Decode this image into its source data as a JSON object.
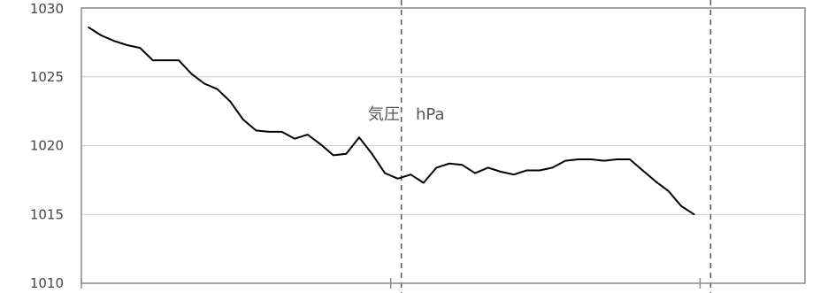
{
  "chart_data": {
    "type": "line",
    "title": "",
    "annotation": "気圧　hPa",
    "xlabel": "",
    "ylabel": "",
    "ylim": [
      1010,
      1030
    ],
    "yticks": [
      1010,
      1015,
      1020,
      1025,
      1030
    ],
    "grid": true,
    "legend": "none",
    "series": [
      {
        "values": [
          1028.6,
          1028.0,
          1027.6,
          1027.3,
          1027.1,
          1026.2,
          1026.2,
          1026.2,
          1025.2,
          1024.5,
          1024.1,
          1023.2,
          1021.9,
          1021.1,
          1021.0,
          1021.0,
          1020.5,
          1020.8,
          1020.1,
          1019.3,
          1019.4,
          1020.6,
          1019.4,
          1018.0,
          1017.6,
          1017.9,
          1017.3,
          1018.4,
          1018.7,
          1018.6,
          1018.0,
          1018.4,
          1018.1,
          1017.9,
          1018.2,
          1018.2,
          1018.4,
          1018.9,
          1019.0,
          1019.0,
          1018.9,
          1019.0,
          1019.0,
          1018.2,
          1017.4,
          1016.7,
          1015.6,
          1015.0
        ],
        "color": "#000000"
      }
    ],
    "dashed_markers": [
      24,
      48
    ],
    "x_ticks": [
      0,
      24,
      48
    ]
  }
}
